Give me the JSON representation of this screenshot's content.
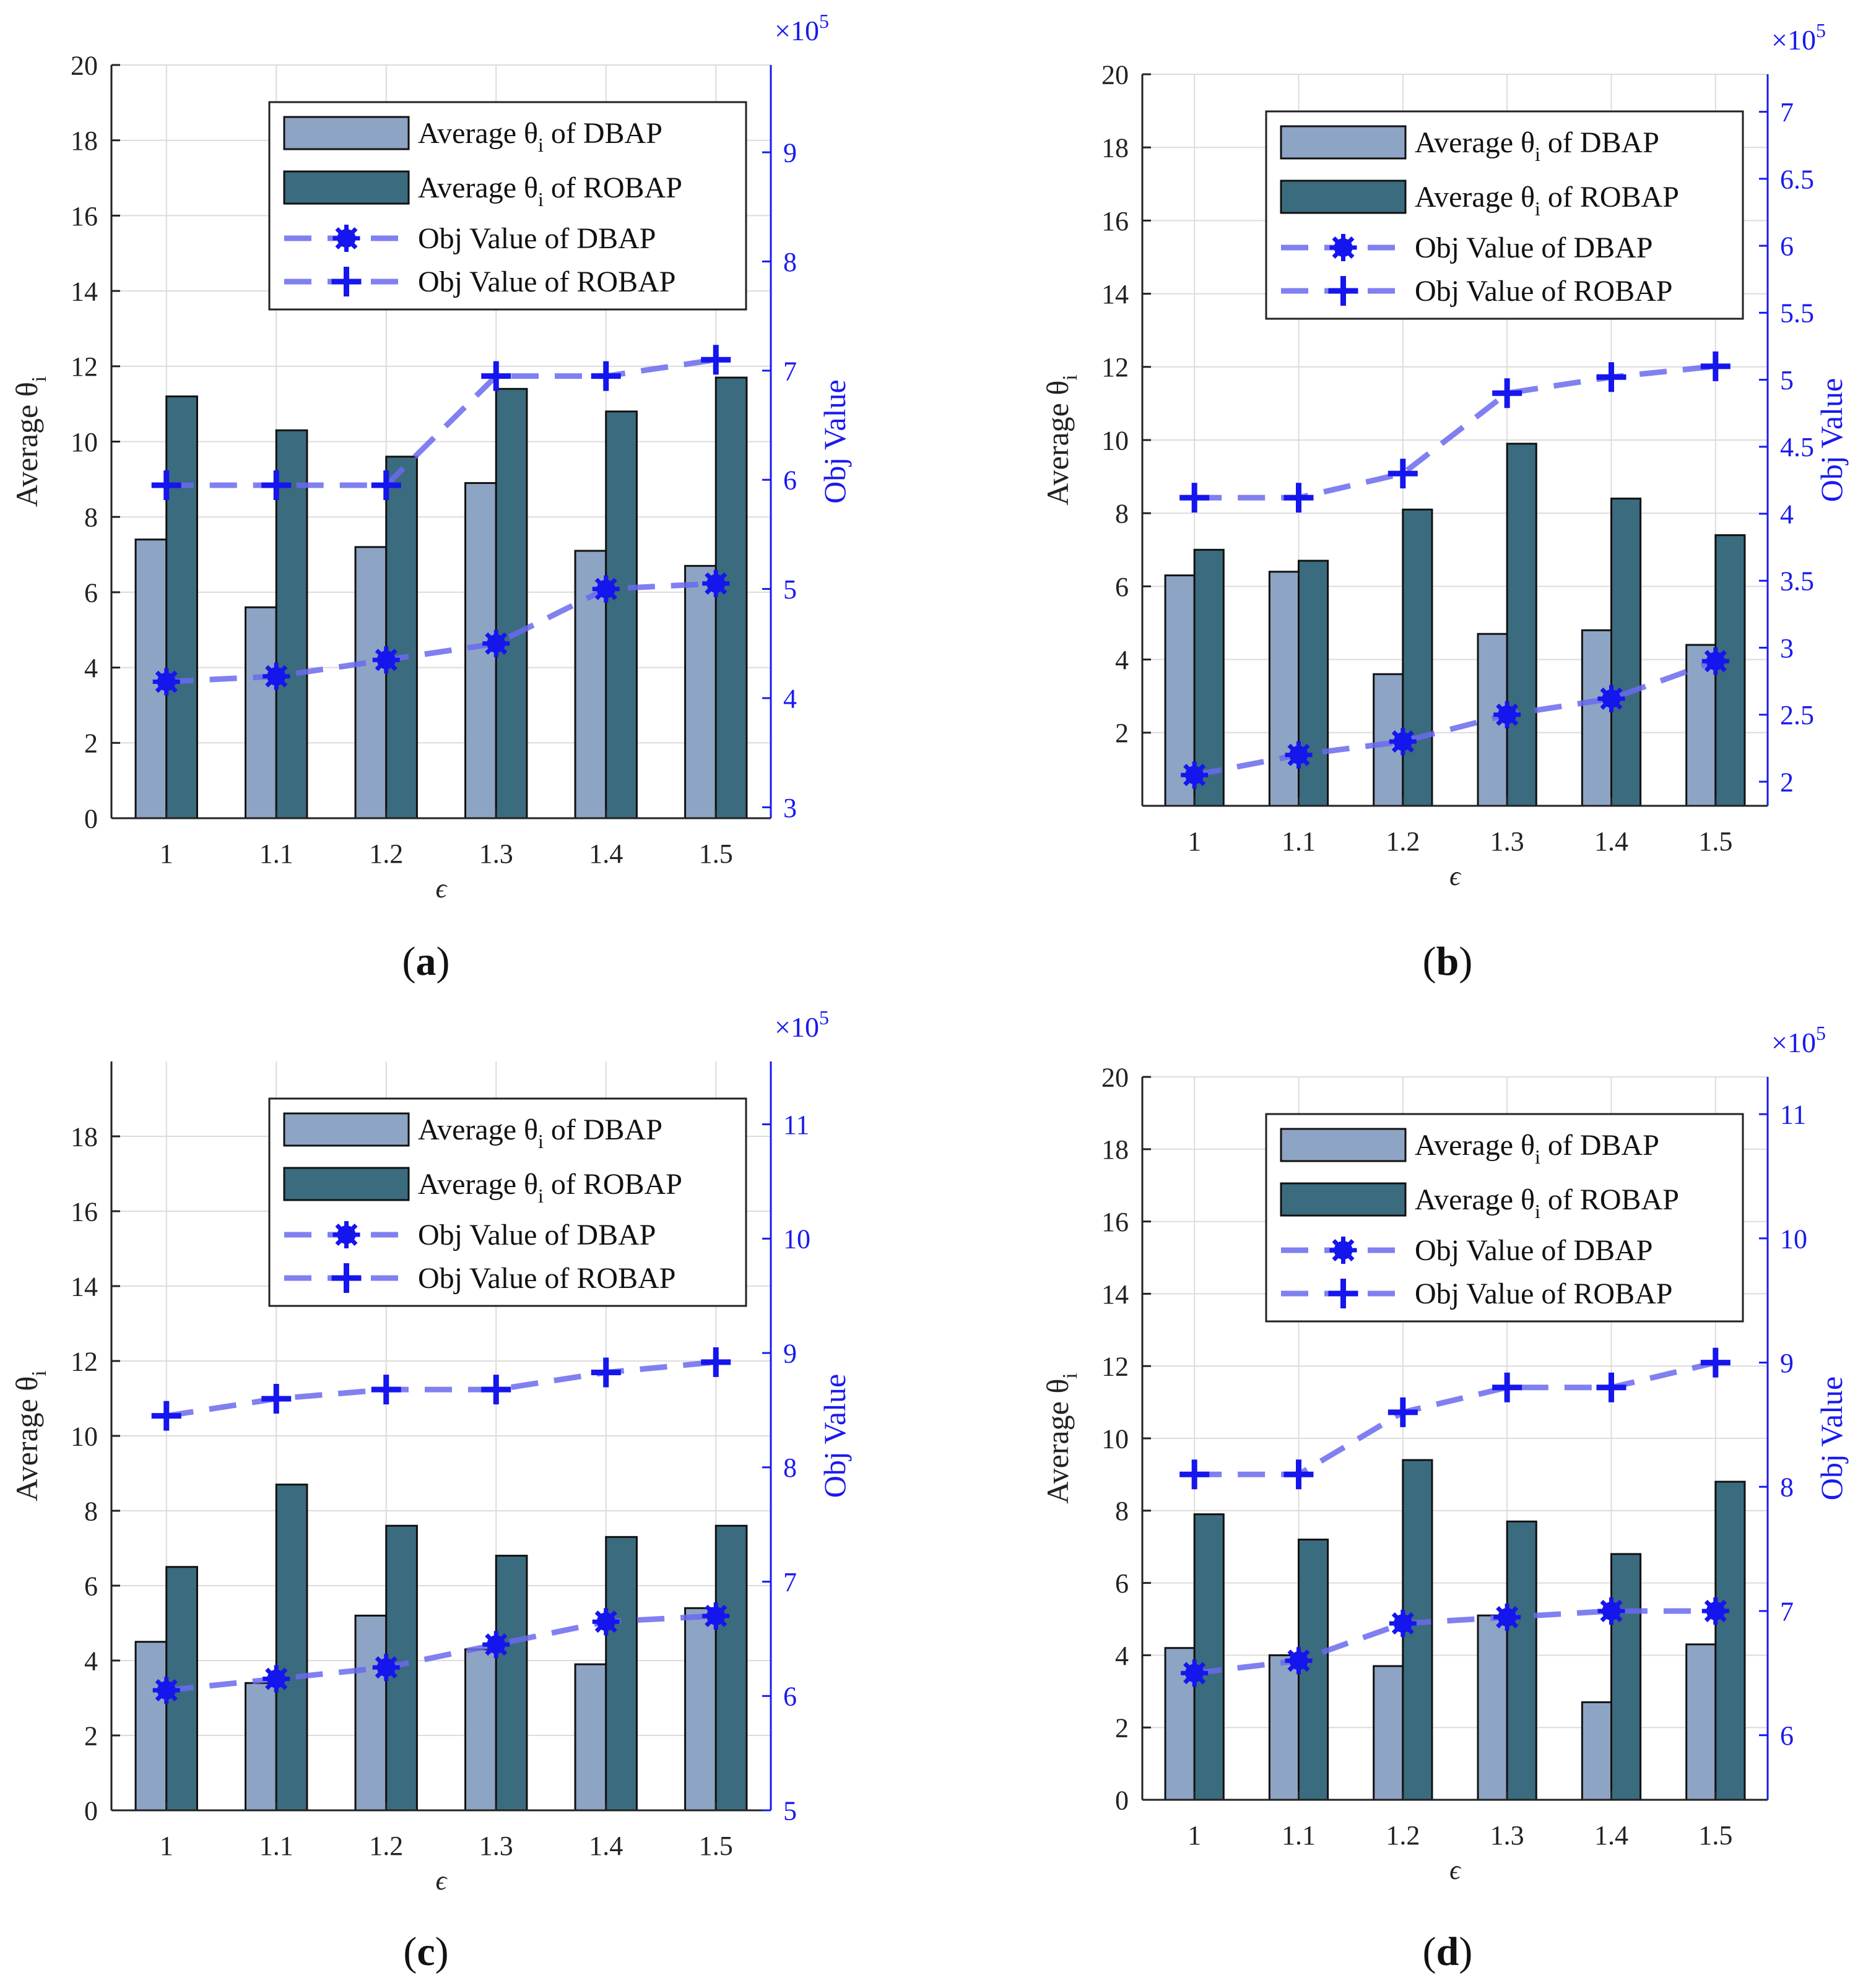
{
  "figure": {
    "legend": {
      "dbap_bar": "Average θ",
      "dbap_bar_sub": "i",
      "dbap_bar_suffix": " of DBAP",
      "robap_bar": "Average θ",
      "robap_bar_sub": "i",
      "robap_bar_suffix": " of ROBAP",
      "dbap_obj": "Obj Value of DBAP",
      "robap_obj": "Obj Value of ROBAP"
    },
    "colors": {
      "dbap_bar": "#8da4c4",
      "robap_bar": "#3b6b7e",
      "line": "#6a6aee",
      "marker": "#1515ee",
      "right_axis": "#1a1aee",
      "grid": "#dcdcdc"
    }
  },
  "chart_data": [
    {
      "panel": "a",
      "caption": "a",
      "type": "bar",
      "categories": [
        "1",
        "1.1",
        "1.2",
        "1.3",
        "1.4",
        "1.5"
      ],
      "xlabel": "ϵ",
      "ylabel": "Average θ",
      "ylabel_sub": "i",
      "ylim": [
        0,
        20
      ],
      "yticks": [
        0,
        2,
        4,
        6,
        8,
        10,
        12,
        14,
        16,
        18,
        20
      ],
      "y2label": "Obj Value",
      "y2_multiplier": "×10",
      "y2_exponent": "5",
      "y2lim": [
        2.9,
        9.8
      ],
      "y2ticks": [
        3,
        4,
        5,
        6,
        7,
        8,
        9
      ],
      "grid": true,
      "legend_position": "top-right",
      "series": [
        {
          "name": "Average θi of DBAP",
          "kind": "bar",
          "values": [
            7.4,
            5.6,
            7.2,
            8.9,
            7.1,
            6.7
          ]
        },
        {
          "name": "Average θi of ROBAP",
          "kind": "bar",
          "values": [
            11.2,
            10.3,
            9.6,
            11.4,
            10.8,
            11.7
          ]
        },
        {
          "name": "Obj Value of DBAP",
          "kind": "line",
          "marker": "asterisk",
          "values": [
            4.15,
            4.2,
            4.35,
            4.5,
            5.0,
            5.05
          ]
        },
        {
          "name": "Obj Value of ROBAP",
          "kind": "line",
          "marker": "plus",
          "values": [
            5.95,
            5.95,
            5.95,
            6.95,
            6.95,
            7.1
          ]
        }
      ]
    },
    {
      "panel": "b",
      "caption": "b",
      "type": "bar",
      "categories": [
        "1",
        "1.1",
        "1.2",
        "1.3",
        "1.4",
        "1.5"
      ],
      "xlabel": "ϵ",
      "ylabel": "Average θ",
      "ylabel_sub": "i",
      "ylim": [
        0,
        20
      ],
      "yticks": [
        2,
        4,
        6,
        8,
        10,
        12,
        14,
        16,
        18,
        20
      ],
      "y2label": "Obj Value",
      "y2_multiplier": "×10",
      "y2_exponent": "5",
      "y2lim": [
        1.82,
        7.28
      ],
      "y2ticks": [
        2,
        2.5,
        3,
        3.5,
        4,
        4.5,
        5,
        5.5,
        6,
        6.5,
        7
      ],
      "grid": true,
      "legend_position": "top-right",
      "series": [
        {
          "name": "Average θi of DBAP",
          "kind": "bar",
          "values": [
            6.3,
            6.4,
            3.6,
            4.7,
            4.8,
            4.4
          ]
        },
        {
          "name": "Average θi of ROBAP",
          "kind": "bar",
          "values": [
            7.0,
            6.7,
            8.1,
            9.9,
            8.4,
            7.4
          ]
        },
        {
          "name": "Obj Value of DBAP",
          "kind": "line",
          "marker": "asterisk",
          "values": [
            2.05,
            2.2,
            2.3,
            2.5,
            2.62,
            2.9
          ]
        },
        {
          "name": "Obj Value of ROBAP",
          "kind": "line",
          "marker": "plus",
          "values": [
            4.12,
            4.12,
            4.3,
            4.9,
            5.02,
            5.1
          ]
        }
      ]
    },
    {
      "panel": "c",
      "caption": "c",
      "type": "bar",
      "categories": [
        "1",
        "1.1",
        "1.2",
        "1.3",
        "1.4",
        "1.5"
      ],
      "xlabel": "ϵ",
      "ylabel": "Average θ",
      "ylabel_sub": "i",
      "ylim": [
        0,
        20
      ],
      "yticks": [
        0,
        2,
        4,
        6,
        8,
        10,
        12,
        14,
        16,
        18
      ],
      "y2label": "Obj Value",
      "y2_multiplier": "×10",
      "y2_exponent": "5",
      "y2lim": [
        5.0,
        11.55
      ],
      "y2ticks": [
        5,
        6,
        7,
        8,
        9,
        10,
        11
      ],
      "grid": true,
      "legend_position": "top-right",
      "series": [
        {
          "name": "Average θi of DBAP",
          "kind": "bar",
          "values": [
            4.5,
            3.4,
            5.2,
            4.3,
            3.9,
            5.4
          ]
        },
        {
          "name": "Average θi of ROBAP",
          "kind": "bar",
          "values": [
            6.5,
            8.7,
            7.6,
            6.8,
            7.3,
            7.6
          ]
        },
        {
          "name": "Obj Value of DBAP",
          "kind": "line",
          "marker": "asterisk",
          "values": [
            6.05,
            6.15,
            6.25,
            6.45,
            6.65,
            6.7
          ]
        },
        {
          "name": "Obj Value of ROBAP",
          "kind": "line",
          "marker": "plus",
          "values": [
            8.45,
            8.6,
            8.68,
            8.68,
            8.83,
            8.92
          ]
        }
      ]
    },
    {
      "panel": "d",
      "caption": "d",
      "type": "bar",
      "categories": [
        "1",
        "1.1",
        "1.2",
        "1.3",
        "1.4",
        "1.5"
      ],
      "xlabel": "ϵ",
      "ylabel": "Average θ",
      "ylabel_sub": "i",
      "ylim": [
        0,
        20
      ],
      "yticks": [
        0,
        2,
        4,
        6,
        8,
        10,
        12,
        14,
        16,
        18,
        20
      ],
      "y2label": "Obj Value",
      "y2_multiplier": "×10",
      "y2_exponent": "5",
      "y2lim": [
        5.48,
        11.3
      ],
      "y2ticks": [
        6,
        7,
        8,
        9,
        10,
        11
      ],
      "grid": true,
      "legend_position": "top-right",
      "series": [
        {
          "name": "Average θi of DBAP",
          "kind": "bar",
          "values": [
            4.2,
            4.0,
            3.7,
            5.1,
            2.7,
            4.3
          ]
        },
        {
          "name": "Average θi of ROBAP",
          "kind": "bar",
          "values": [
            7.9,
            7.2,
            9.4,
            7.7,
            6.8,
            8.8
          ]
        },
        {
          "name": "Obj Value of DBAP",
          "kind": "line",
          "marker": "asterisk",
          "values": [
            6.5,
            6.6,
            6.9,
            6.95,
            7.0,
            7.0
          ]
        },
        {
          "name": "Obj Value of ROBAP",
          "kind": "line",
          "marker": "plus",
          "values": [
            8.1,
            8.1,
            8.6,
            8.8,
            8.8,
            9.0
          ]
        }
      ]
    }
  ]
}
